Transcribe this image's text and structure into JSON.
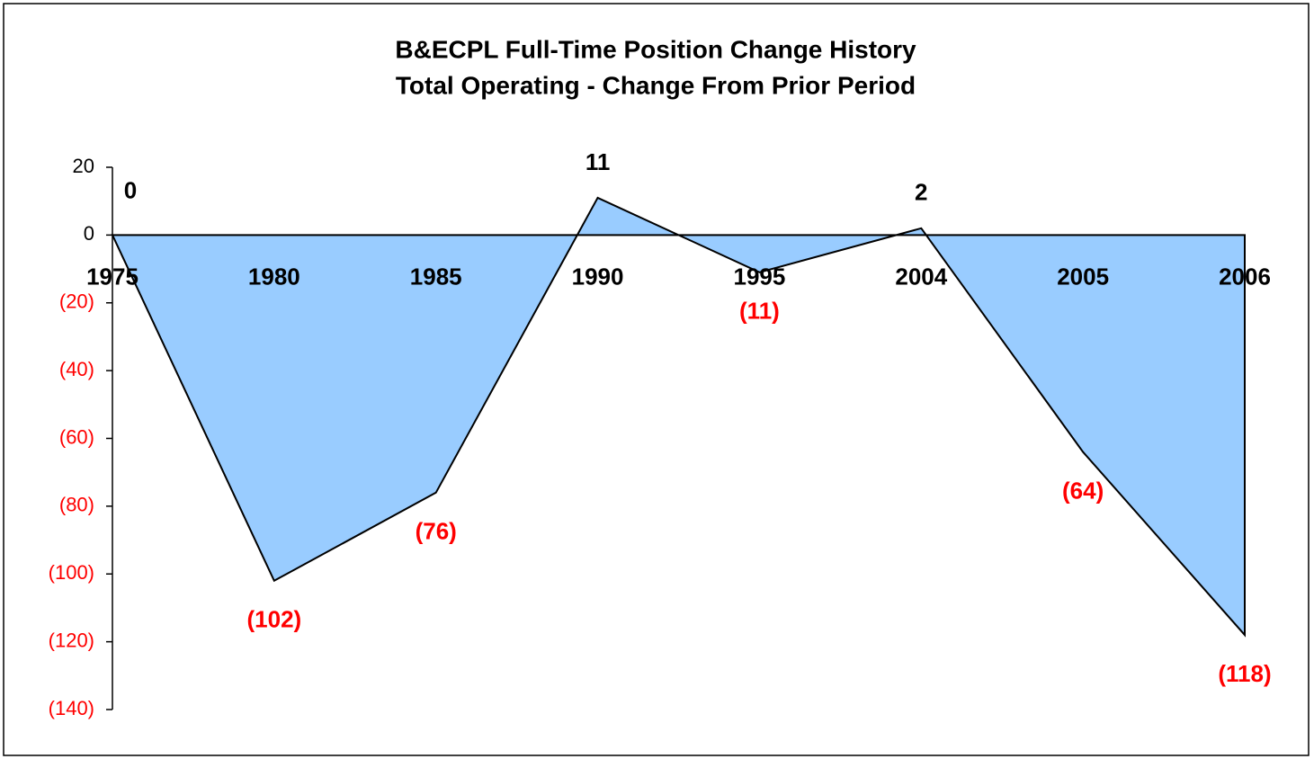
{
  "chart_data": {
    "type": "area",
    "title": "B&ECPL Full-Time Position Change History",
    "subtitle": "Total Operating - Change From Prior Period",
    "categories": [
      "1975",
      "1980",
      "1985",
      "1990",
      "1995",
      "2004",
      "2005",
      "2006"
    ],
    "values": [
      0,
      -102,
      -76,
      11,
      -11,
      2,
      -64,
      -118
    ],
    "value_labels": [
      "0",
      "(102)",
      "(76)",
      "11",
      "(11)",
      "2",
      "(64)",
      "(118)"
    ],
    "color": "#99ccff",
    "line_color": "#000000",
    "negative_label_color": "#ff0000",
    "ylim": [
      -140,
      20
    ],
    "yticks": [
      20,
      0,
      {
        "value": -20,
        "label": "(20)"
      },
      {
        "value": -40,
        "label": "(40)"
      },
      {
        "value": -60,
        "label": "(60)"
      },
      {
        "value": -80,
        "label": "(80)"
      },
      {
        "value": -100,
        "label": "(100)"
      },
      {
        "value": -120,
        "label": "(120)"
      },
      {
        "value": -140,
        "label": "(140)"
      }
    ],
    "grid": false
  }
}
